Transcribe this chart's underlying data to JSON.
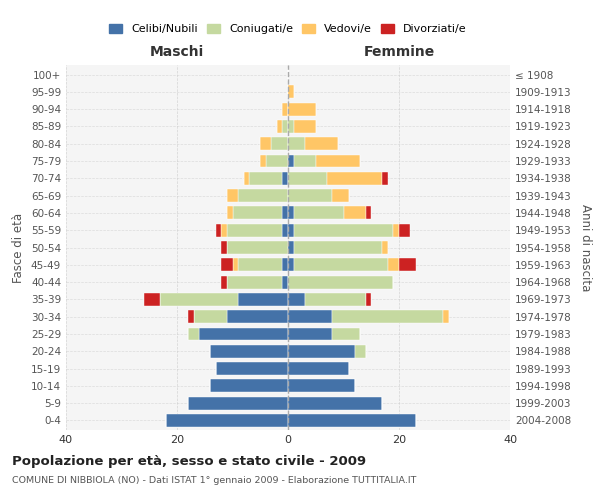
{
  "age_groups": [
    "0-4",
    "5-9",
    "10-14",
    "15-19",
    "20-24",
    "25-29",
    "30-34",
    "35-39",
    "40-44",
    "45-49",
    "50-54",
    "55-59",
    "60-64",
    "65-69",
    "70-74",
    "75-79",
    "80-84",
    "85-89",
    "90-94",
    "95-99",
    "100+"
  ],
  "birth_years": [
    "2004-2008",
    "1999-2003",
    "1994-1998",
    "1989-1993",
    "1984-1988",
    "1979-1983",
    "1974-1978",
    "1969-1973",
    "1964-1968",
    "1959-1963",
    "1954-1958",
    "1949-1953",
    "1944-1948",
    "1939-1943",
    "1934-1938",
    "1929-1933",
    "1924-1928",
    "1919-1923",
    "1914-1918",
    "1909-1913",
    "≤ 1908"
  ],
  "maschi": {
    "celibi": [
      22,
      18,
      14,
      13,
      14,
      16,
      11,
      9,
      1,
      1,
      0,
      1,
      1,
      0,
      1,
      0,
      0,
      0,
      0,
      0,
      0
    ],
    "coniugati": [
      0,
      0,
      0,
      0,
      0,
      2,
      6,
      14,
      10,
      8,
      11,
      10,
      9,
      9,
      6,
      4,
      3,
      1,
      0,
      0,
      0
    ],
    "vedovi": [
      0,
      0,
      0,
      0,
      0,
      0,
      0,
      0,
      0,
      1,
      0,
      1,
      1,
      2,
      1,
      1,
      2,
      1,
      1,
      0,
      0
    ],
    "divorziati": [
      0,
      0,
      0,
      0,
      0,
      0,
      1,
      3,
      1,
      2,
      1,
      1,
      0,
      0,
      0,
      0,
      0,
      0,
      0,
      0,
      0
    ]
  },
  "femmine": {
    "nubili": [
      23,
      17,
      12,
      11,
      12,
      8,
      8,
      3,
      0,
      1,
      1,
      1,
      1,
      0,
      0,
      1,
      0,
      0,
      0,
      0,
      0
    ],
    "coniugate": [
      0,
      0,
      0,
      0,
      2,
      5,
      20,
      11,
      19,
      17,
      16,
      18,
      9,
      8,
      7,
      4,
      3,
      1,
      0,
      0,
      0
    ],
    "vedove": [
      0,
      0,
      0,
      0,
      0,
      0,
      1,
      0,
      0,
      2,
      1,
      1,
      4,
      3,
      10,
      8,
      6,
      4,
      5,
      1,
      0
    ],
    "divorziate": [
      0,
      0,
      0,
      0,
      0,
      0,
      0,
      1,
      0,
      3,
      0,
      2,
      1,
      0,
      1,
      0,
      0,
      0,
      0,
      0,
      0
    ]
  },
  "colors": {
    "celibi": "#4472a8",
    "coniugati": "#c5d9a0",
    "vedovi": "#ffc666",
    "divorziati": "#cc2222"
  },
  "title": "Popolazione per età, sesso e stato civile - 2009",
  "subtitle": "COMUNE DI NIBBIOLA (NO) - Dati ISTAT 1° gennaio 2009 - Elaborazione TUTTITALIA.IT",
  "xlabel_left": "Maschi",
  "xlabel_right": "Femmine",
  "ylabel_left": "Fasce di età",
  "ylabel_right": "Anni di nascita",
  "xlim": 40,
  "legend_labels": [
    "Celibi/Nubili",
    "Coniugati/e",
    "Vedovi/e",
    "Divorziati/e"
  ],
  "bg_color": "#f5f5f5",
  "grid_color": "#cccccc"
}
